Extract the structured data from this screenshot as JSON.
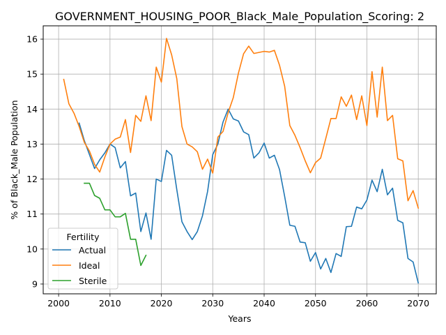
{
  "chart_data": {
    "type": "line",
    "title": "GOVERNMENT_HOUSING_POOR_Black_Male_Population_Scoring: 2",
    "xlabel": "Years",
    "ylabel": "% of Black_Male Population",
    "xlim": [
      1997,
      2073.5
    ],
    "ylim": [
      8.72,
      16.38
    ],
    "xticks": [
      2000,
      2010,
      2020,
      2030,
      2040,
      2050,
      2060,
      2070
    ],
    "yticks": [
      9,
      10,
      11,
      12,
      13,
      14,
      15,
      16
    ],
    "grid": true,
    "legend": {
      "title": "Fertility",
      "placement": "lower-left"
    },
    "series": [
      {
        "name": "Actual",
        "color": "#1f77b4",
        "x": [
          2004,
          2005,
          2006,
          2007,
          2008,
          2009,
          2010,
          2011,
          2012,
          2013,
          2014,
          2015,
          2016,
          2017,
          2018,
          2019,
          2020,
          2021,
          2022,
          2023,
          2024,
          2025,
          2026,
          2027,
          2028,
          2029,
          2030,
          2031,
          2032,
          2033,
          2034,
          2035,
          2036,
          2037,
          2038,
          2039,
          2040,
          2041,
          2042,
          2043,
          2044,
          2045,
          2046,
          2047,
          2048,
          2049,
          2050,
          2051,
          2052,
          2053,
          2054,
          2055,
          2056,
          2057,
          2058,
          2059,
          2060,
          2061,
          2062,
          2063,
          2064,
          2065,
          2066,
          2067,
          2068,
          2069,
          2070
        ],
        "y": [
          13.6,
          13.1,
          12.7,
          12.3,
          12.55,
          12.75,
          13.0,
          12.9,
          12.32,
          12.5,
          11.52,
          11.6,
          10.5,
          11.03,
          10.28,
          12.0,
          11.93,
          12.82,
          12.68,
          11.7,
          10.78,
          10.5,
          10.27,
          10.5,
          10.95,
          11.65,
          12.7,
          13.0,
          13.63,
          14.0,
          13.72,
          13.66,
          13.35,
          13.27,
          12.6,
          12.75,
          13.03,
          12.6,
          12.68,
          12.27,
          11.5,
          10.68,
          10.65,
          10.2,
          10.18,
          9.65,
          9.9,
          9.43,
          9.73,
          9.33,
          9.87,
          9.79,
          10.64,
          10.65,
          11.2,
          11.15,
          11.4,
          11.97,
          11.64,
          12.28,
          11.55,
          11.74,
          10.82,
          10.75,
          9.73,
          9.63,
          9.03
        ]
      },
      {
        "name": "Ideal",
        "color": "#ff7f0e",
        "x": [
          2001,
          2002,
          2003,
          2004,
          2005,
          2006,
          2007,
          2008,
          2009,
          2010,
          2011,
          2012,
          2013,
          2014,
          2015,
          2016,
          2017,
          2018,
          2019,
          2020,
          2021,
          2022,
          2023,
          2024,
          2025,
          2026,
          2027,
          2028,
          2029,
          2030,
          2031,
          2032,
          2033,
          2034,
          2035,
          2036,
          2037,
          2038,
          2039,
          2040,
          2041,
          2042,
          2043,
          2044,
          2045,
          2046,
          2047,
          2048,
          2049,
          2050,
          2051,
          2052,
          2053,
          2054,
          2055,
          2056,
          2057,
          2058,
          2059,
          2060,
          2061,
          2062,
          2063,
          2064,
          2065,
          2066,
          2067,
          2068,
          2069,
          2070
        ],
        "y": [
          14.85,
          14.15,
          13.88,
          13.5,
          13.05,
          12.8,
          12.42,
          12.2,
          12.63,
          13.0,
          13.14,
          13.2,
          13.7,
          12.76,
          13.82,
          13.65,
          14.38,
          13.67,
          15.2,
          14.77,
          16.02,
          15.55,
          14.87,
          13.5,
          13.0,
          12.92,
          12.78,
          12.28,
          12.57,
          12.17,
          13.2,
          13.36,
          13.9,
          14.33,
          15.03,
          15.58,
          15.8,
          15.59,
          15.62,
          15.65,
          15.63,
          15.68,
          15.25,
          14.65,
          13.53,
          13.25,
          12.9,
          12.52,
          12.18,
          12.47,
          12.6,
          13.16,
          13.73,
          13.73,
          14.35,
          14.08,
          14.4,
          13.7,
          14.38,
          13.53,
          15.07,
          13.77,
          15.2,
          13.67,
          13.82,
          12.58,
          12.52,
          11.38,
          11.67,
          11.17
        ]
      },
      {
        "name": "Sterile",
        "color": "#2ca02c",
        "x": [
          2005,
          2006,
          2007,
          2008,
          2009,
          2010,
          2011,
          2012,
          2013,
          2014,
          2015,
          2016,
          2017
        ],
        "y": [
          11.88,
          11.88,
          11.53,
          11.45,
          11.12,
          11.12,
          10.92,
          10.92,
          11.02,
          10.28,
          10.28,
          9.53,
          9.82
        ]
      }
    ]
  }
}
